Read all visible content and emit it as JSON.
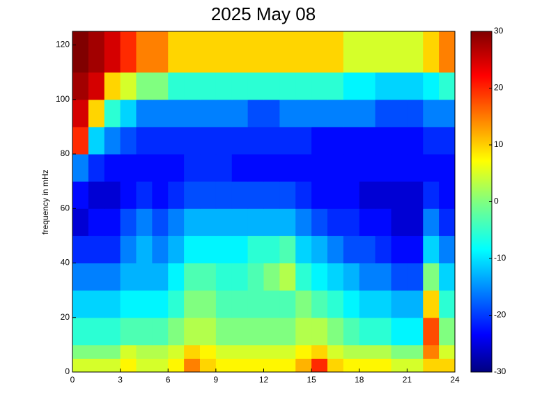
{
  "chart_data": {
    "type": "heatmap",
    "title": "2025 May 08",
    "y_label": "frequency in mHz",
    "colormap": "jet",
    "x_bins": [
      0,
      1,
      2,
      3,
      4,
      5,
      6,
      7,
      8,
      9,
      10,
      11,
      12,
      13,
      14,
      15,
      16,
      17,
      18,
      19,
      20,
      21,
      22,
      23,
      24
    ],
    "y_bins": [
      0,
      5,
      10,
      20,
      30,
      40,
      50,
      60,
      70,
      80,
      90,
      100,
      110,
      125
    ],
    "z": [
      [
        5,
        5,
        5,
        8,
        5,
        5,
        8,
        15,
        10,
        8,
        8,
        8,
        8,
        8,
        12,
        20,
        10,
        8,
        8,
        8,
        5,
        5,
        10,
        10
      ],
      [
        0,
        0,
        0,
        5,
        3,
        3,
        5,
        10,
        8,
        5,
        5,
        5,
        5,
        5,
        8,
        10,
        5,
        3,
        3,
        3,
        0,
        0,
        15,
        5
      ],
      [
        -5,
        -5,
        -5,
        -3,
        -3,
        -3,
        0,
        3,
        3,
        0,
        0,
        0,
        0,
        0,
        3,
        3,
        0,
        -3,
        -5,
        -5,
        -8,
        -8,
        18,
        0
      ],
      [
        -10,
        -10,
        -10,
        -8,
        -8,
        -8,
        -5,
        0,
        0,
        -3,
        -3,
        -3,
        -3,
        -3,
        0,
        -3,
        -5,
        -8,
        -10,
        -10,
        -12,
        -12,
        10,
        -5
      ],
      [
        -15,
        -15,
        -15,
        -12,
        -12,
        -12,
        -8,
        -3,
        -3,
        -5,
        -5,
        -3,
        0,
        3,
        -5,
        -8,
        -10,
        -12,
        -15,
        -15,
        -18,
        -18,
        0,
        -10
      ],
      [
        -20,
        -20,
        -20,
        -15,
        -12,
        -15,
        -12,
        -8,
        -8,
        -8,
        -8,
        -5,
        -5,
        -3,
        -10,
        -12,
        -15,
        -18,
        -18,
        -20,
        -22,
        -22,
        -10,
        -15
      ],
      [
        -25,
        -22,
        -22,
        -18,
        -15,
        -18,
        -15,
        -12,
        -12,
        -12,
        -12,
        -12,
        -12,
        -12,
        -15,
        -18,
        -20,
        -20,
        -22,
        -22,
        -25,
        -25,
        -15,
        -20
      ],
      [
        -22,
        -25,
        -25,
        -22,
        -20,
        -22,
        -20,
        -18,
        -18,
        -18,
        -18,
        -18,
        -18,
        -18,
        -20,
        -22,
        -22,
        -22,
        -25,
        -25,
        -25,
        -25,
        -20,
        -22
      ],
      [
        -15,
        -20,
        -22,
        -22,
        -22,
        -22,
        -22,
        -20,
        -20,
        -20,
        -22,
        -22,
        -22,
        -22,
        -22,
        -22,
        -22,
        -22,
        -22,
        -22,
        -22,
        -22,
        -22,
        -22
      ],
      [
        20,
        -10,
        -15,
        -18,
        -20,
        -20,
        -20,
        -20,
        -20,
        -20,
        -20,
        -20,
        -20,
        -20,
        -20,
        -22,
        -22,
        -22,
        -22,
        -22,
        -22,
        -22,
        -20,
        -20
      ],
      [
        25,
        10,
        -5,
        -10,
        -15,
        -15,
        -15,
        -15,
        -15,
        -15,
        -15,
        -18,
        -18,
        -15,
        -15,
        -15,
        -15,
        -15,
        -15,
        -18,
        -18,
        -18,
        -15,
        -15
      ],
      [
        28,
        25,
        10,
        5,
        0,
        0,
        -5,
        -5,
        -5,
        -5,
        -5,
        -5,
        -5,
        -5,
        -5,
        -5,
        -5,
        -8,
        -8,
        -10,
        -10,
        -10,
        -8,
        -5
      ],
      [
        30,
        28,
        25,
        20,
        15,
        15,
        10,
        10,
        10,
        10,
        10,
        10,
        10,
        10,
        10,
        10,
        10,
        5,
        5,
        5,
        5,
        5,
        10,
        15
      ]
    ],
    "xlim": [
      0,
      24
    ],
    "xticks": [
      0,
      3,
      6,
      9,
      12,
      15,
      18,
      21,
      24
    ],
    "ylim": [
      0,
      125
    ],
    "yticks": [
      0,
      20,
      40,
      60,
      80,
      100,
      120
    ],
    "clim": [
      -30,
      30
    ],
    "cticks": [
      -30,
      -20,
      -10,
      0,
      10,
      20,
      30
    ]
  }
}
